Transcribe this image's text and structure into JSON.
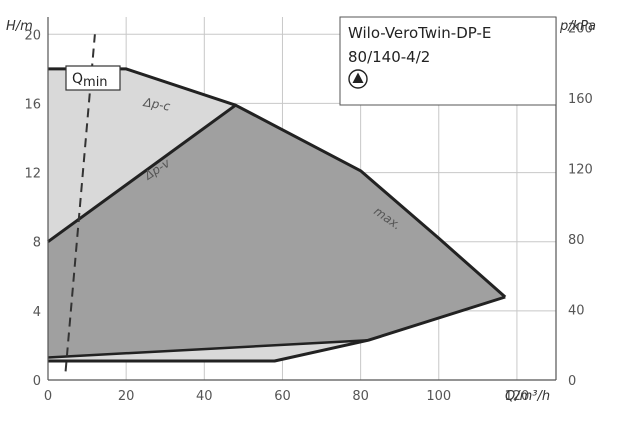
{
  "chart_data": {
    "type": "area",
    "title": "Wilo-VeroTwin-DP-E",
    "subtitle": "80/140-4/2",
    "xlabel": "Q/m³/h",
    "ylabel": "H/m",
    "y2label": "p/kPa",
    "xlim": [
      0,
      130
    ],
    "ylim": [
      0,
      21
    ],
    "y2lim": [
      0,
      206
    ],
    "xticks": [
      0,
      20,
      40,
      60,
      80,
      100,
      120
    ],
    "yticks": [
      0,
      4,
      8,
      12,
      16,
      20
    ],
    "y2ticks": [
      0,
      40,
      80,
      120,
      160,
      200
    ],
    "grid": true,
    "colors": {
      "outer_fill": "#d9d9d9",
      "dp_v_fill": "#a0a0a0",
      "curve": "#222222",
      "grid": "#c8c8c8",
      "qmin_line": "#333333"
    },
    "series": [
      {
        "name": "max.",
        "x": [
          0,
          20,
          48,
          80,
          100,
          117
        ],
        "y": [
          18,
          18,
          15.9,
          12.1,
          8.2,
          4.8
        ]
      },
      {
        "name": "Δp-c",
        "x": [
          0,
          20,
          48
        ],
        "y": [
          18,
          18,
          15.9
        ]
      },
      {
        "name": "Δp-v",
        "x": [
          0,
          48
        ],
        "y": [
          8,
          15.9
        ]
      },
      {
        "name": "min",
        "x": [
          0,
          58,
          82,
          117
        ],
        "y": [
          1.1,
          1.1,
          2.3,
          4.8
        ]
      },
      {
        "name": "Qmin",
        "x": [
          4.5,
          12
        ],
        "y": [
          0.5,
          20
        ]
      }
    ],
    "dp_v_region": {
      "x": [
        0,
        48,
        80,
        100,
        117,
        82,
        0
      ],
      "y": [
        8,
        15.9,
        12.1,
        8.2,
        4.8,
        2.3,
        1.3
      ]
    },
    "inner_light_region": {
      "x": [
        0,
        58,
        64
      ],
      "y": [
        1.1,
        1.1,
        1.6
      ]
    },
    "annotations": {
      "qmin_label_main": "Q",
      "qmin_label_sub": "min",
      "dp_c_label": "Δp-c",
      "dp_v_label": "Δp-v",
      "max_label": "max.",
      "legend_title_line1": "Wilo-VeroTwin-DP-E",
      "legend_title_line2": "80/140-4/2",
      "legend_symbol": "triangle-up-in-circle-icon"
    }
  }
}
